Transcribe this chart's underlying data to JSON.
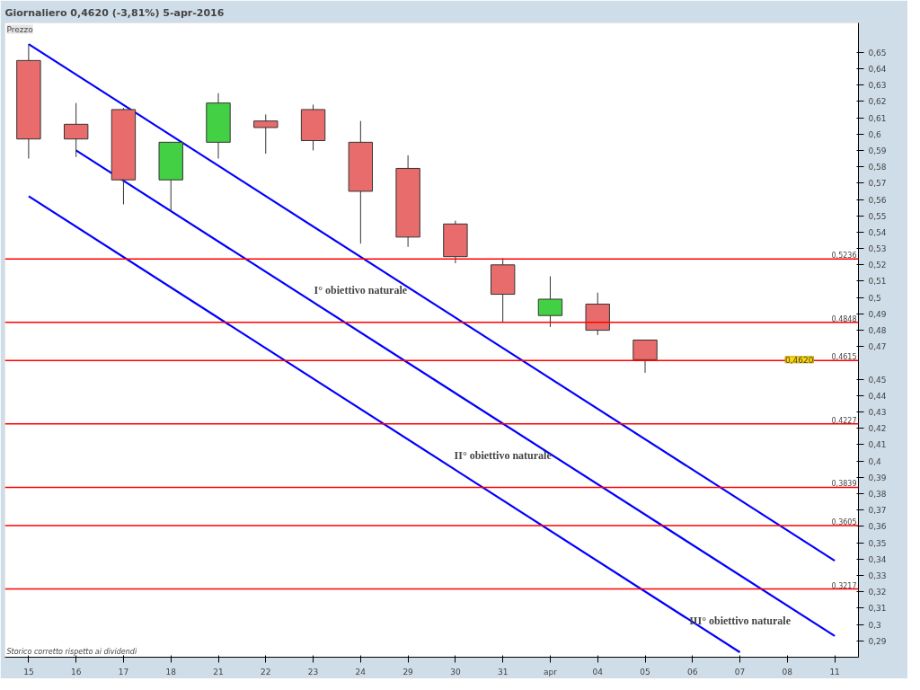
{
  "chart_data": {
    "type": "candlestick",
    "title": "Giornaliero    0,4620 (-3,81%)    5-apr-2016",
    "categories": [
      "15",
      "16",
      "17",
      "18",
      "21",
      "22",
      "23",
      "24",
      "29",
      "30",
      "31",
      "apr",
      "04",
      "05",
      "06",
      "07",
      "08",
      "11"
    ],
    "ohlc": [
      [
        0.645,
        0.655,
        0.585,
        0.597
      ],
      [
        0.606,
        0.619,
        0.586,
        0.597
      ],
      [
        0.615,
        0.616,
        0.557,
        0.572
      ],
      [
        0.572,
        0.595,
        0.553,
        0.595
      ],
      [
        0.595,
        0.625,
        0.585,
        0.619
      ],
      [
        0.608,
        0.612,
        0.588,
        0.604
      ],
      [
        0.615,
        0.618,
        0.59,
        0.596
      ],
      [
        0.595,
        0.608,
        0.533,
        0.565
      ],
      [
        0.579,
        0.587,
        0.531,
        0.537
      ],
      [
        0.545,
        0.547,
        0.521,
        0.525
      ],
      [
        0.52,
        0.524,
        0.485,
        0.502
      ],
      [
        0.489,
        0.513,
        0.482,
        0.499
      ],
      [
        0.496,
        0.503,
        0.477,
        0.48
      ],
      [
        0.474,
        0.474,
        0.454,
        0.462
      ],
      null,
      null,
      null,
      null
    ],
    "colors": [
      "#e86c6c",
      "#e86c6c",
      "#e86c6c",
      "#44d044",
      "#44d044",
      "#e86c6c",
      "#e86c6c",
      "#e86c6c",
      "#e86c6c",
      "#e86c6c",
      "#e86c6c",
      "#44d044",
      "#e86c6c",
      "#e86c6c",
      null,
      null,
      null,
      null
    ],
    "series": [
      {
        "type": "line",
        "color": "#0000ff",
        "x": [
          "15",
          "11"
        ],
        "values": [
          0.655,
          0.339
        ]
      },
      {
        "type": "line",
        "color": "#0000ff",
        "x": [
          "16",
          "11"
        ],
        "values": [
          0.59,
          0.293
        ]
      },
      {
        "type": "line",
        "color": "#0000ff",
        "x": [
          "15",
          "07"
        ],
        "values": [
          0.562,
          0.283
        ]
      }
    ],
    "ylim": [
      0.28,
      0.668
    ],
    "yticks": [
      {
        "value": 0.29,
        "label": "0,29"
      },
      {
        "value": 0.3,
        "label": "0,3"
      },
      {
        "value": 0.31,
        "label": "0,31"
      },
      {
        "value": 0.32,
        "label": "0,32"
      },
      {
        "value": 0.33,
        "label": "0,33"
      },
      {
        "value": 0.34,
        "label": "0,34"
      },
      {
        "value": 0.35,
        "label": "0,35"
      },
      {
        "value": 0.36,
        "label": "0,36"
      },
      {
        "value": 0.37,
        "label": "0,37"
      },
      {
        "value": 0.38,
        "label": "0,38"
      },
      {
        "value": 0.39,
        "label": "0,39"
      },
      {
        "value": 0.4,
        "label": "0,4"
      },
      {
        "value": 0.41,
        "label": "0,41"
      },
      {
        "value": 0.42,
        "label": "0,42"
      },
      {
        "value": 0.43,
        "label": "0,43"
      },
      {
        "value": 0.44,
        "label": "0,44"
      },
      {
        "value": 0.45,
        "label": "0,45"
      },
      {
        "value": 0.47,
        "label": "0,47"
      },
      {
        "value": 0.48,
        "label": "0,48"
      },
      {
        "value": 0.49,
        "label": "0,49"
      },
      {
        "value": 0.5,
        "label": "0,5"
      },
      {
        "value": 0.51,
        "label": "0,51"
      },
      {
        "value": 0.52,
        "label": "0,52"
      },
      {
        "value": 0.53,
        "label": "0,53"
      },
      {
        "value": 0.54,
        "label": "0,54"
      },
      {
        "value": 0.55,
        "label": "0,55"
      },
      {
        "value": 0.56,
        "label": "0,56"
      },
      {
        "value": 0.57,
        "label": "0,57"
      },
      {
        "value": 0.58,
        "label": "0,58"
      },
      {
        "value": 0.59,
        "label": "0,59"
      },
      {
        "value": 0.6,
        "label": "0,6"
      },
      {
        "value": 0.61,
        "label": "0,61"
      },
      {
        "value": 0.62,
        "label": "0,62"
      },
      {
        "value": 0.63,
        "label": "0,63"
      },
      {
        "value": 0.64,
        "label": "0,64"
      },
      {
        "value": 0.65,
        "label": "0,65"
      }
    ],
    "ref_lines": [
      {
        "axis": "y",
        "value": 0.5236,
        "label": "0,5236",
        "color": "#ff0000"
      },
      {
        "axis": "y",
        "value": 0.4848,
        "label": "0,4848",
        "color": "#ff0000"
      },
      {
        "axis": "y",
        "value": 0.4615,
        "label": "0,4615",
        "color": "#ff0000"
      },
      {
        "axis": "y",
        "value": 0.4227,
        "label": "0,4227",
        "color": "#ff0000"
      },
      {
        "axis": "y",
        "value": 0.3839,
        "label": "0,3839",
        "color": "#ff0000"
      },
      {
        "axis": "y",
        "value": 0.3605,
        "label": "0,3605",
        "color": "#ff0000"
      },
      {
        "axis": "y",
        "value": 0.3217,
        "label": "0,3217",
        "color": "#ff0000"
      }
    ],
    "annotations": [
      {
        "text": "I° obiettivo naturale",
        "x": "24",
        "y": 0.5236
      },
      {
        "text": "II° obiettivo naturale",
        "x": "31",
        "y": 0.4227
      },
      {
        "text": "III° obiettivo naturale",
        "x": "07",
        "y": 0.3217
      },
      {
        "text": "0,4620",
        "y": 0.462
      },
      "Prezzo",
      "Storico corretto rispetto ai dividendi"
    ],
    "grid": false
  }
}
